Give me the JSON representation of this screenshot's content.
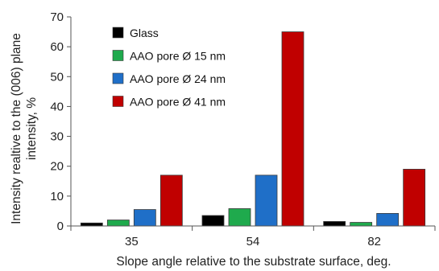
{
  "chart_data": {
    "type": "bar",
    "categories": [
      "35",
      "54",
      "82"
    ],
    "series": [
      {
        "name": "Glass",
        "color": "#000000",
        "values": [
          1.0,
          3.5,
          1.5
        ]
      },
      {
        "name": "AAO pore Ø 15 nm",
        "color": "#1faa4d",
        "values": [
          2.0,
          5.8,
          1.2
        ]
      },
      {
        "name": "AAO pore Ø 24 nm",
        "color": "#1f6fc8",
        "values": [
          5.5,
          17.0,
          4.2
        ]
      },
      {
        "name": "AAO pore Ø 41 nm",
        "color": "#c00000",
        "values": [
          17.0,
          65.0,
          19.0
        ]
      }
    ],
    "title": "",
    "xlabel": "Slope angle relative to the substrate surface, deg.",
    "ylabel_lines": [
      "Intensity realtive to the (006) plane",
      "intensity, %"
    ],
    "ylim": [
      0,
      70
    ],
    "yticks": [
      0,
      10,
      20,
      30,
      40,
      50,
      60,
      70
    ],
    "grid": false,
    "legend_position": "top-left"
  }
}
